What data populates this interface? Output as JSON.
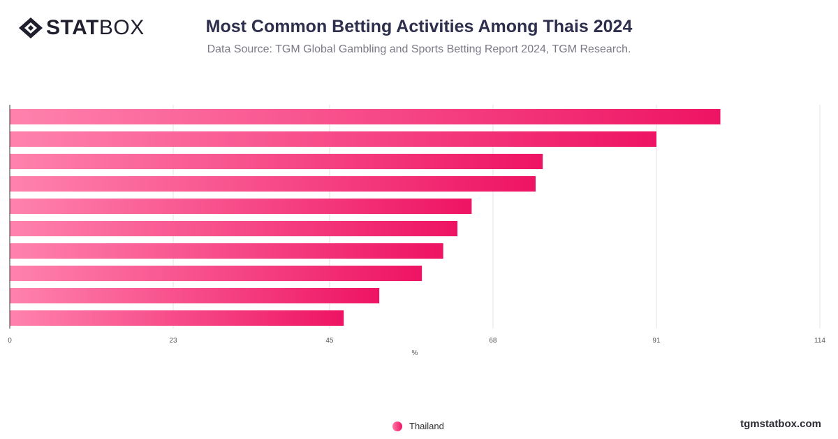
{
  "header": {
    "logo_bold": "STAT",
    "logo_light": "BOX",
    "title": "Most Common Betting Activities Among Thais 2024",
    "subtitle": "Data Source: TGM Global Gambling and Sports Betting Report 2024, TGM Research."
  },
  "footer": {
    "site": "tgmstatbox.com"
  },
  "colors": {
    "bar_start": "#ff82ad",
    "bar_end": "#ee1463",
    "title": "#2e2e4d",
    "grid": "#e3e3e3"
  },
  "chart_data": {
    "type": "bar",
    "orientation": "horizontal",
    "series": [
      {
        "name": "Thailand",
        "values": [
          100,
          91,
          75,
          74,
          65,
          63,
          61,
          58,
          52,
          47
        ]
      }
    ],
    "xlabel": "%",
    "xlim": [
      0,
      114
    ],
    "xticks": [
      0,
      23,
      45,
      68,
      91,
      114
    ],
    "grid": true,
    "legend": "bottom-center"
  }
}
